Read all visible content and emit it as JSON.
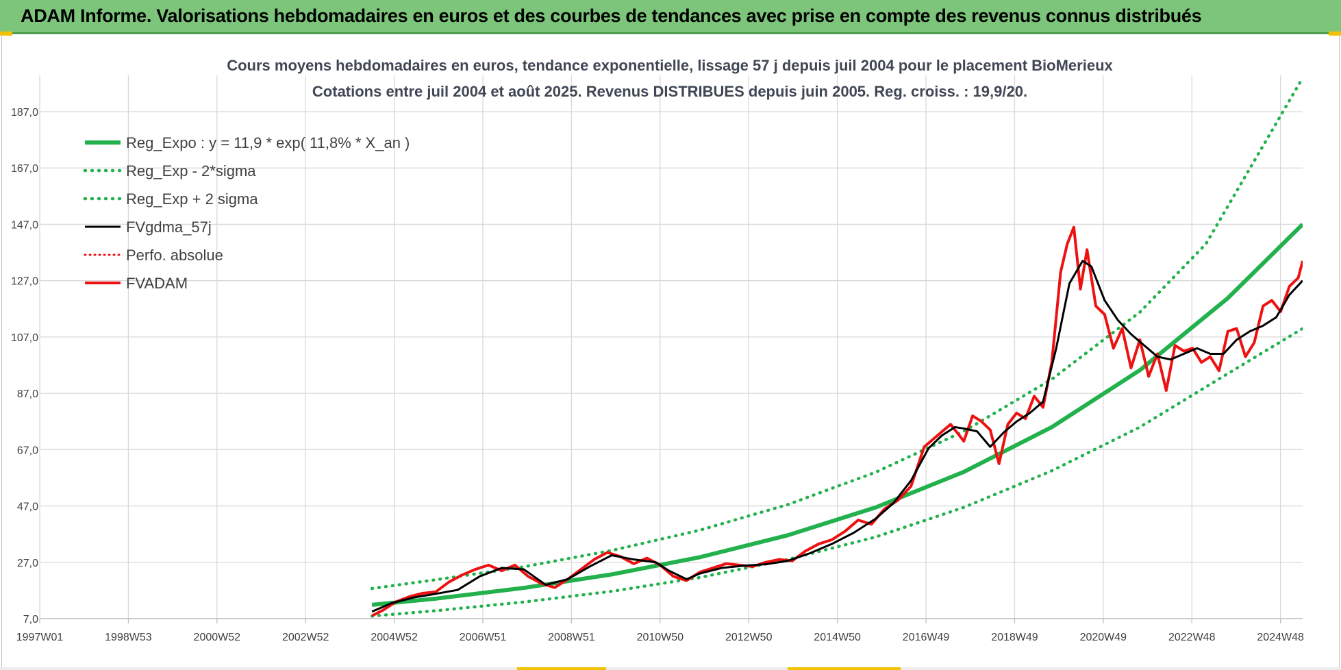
{
  "header": {
    "title": "ADAM Informe. Valorisations hebdomadaires en euros et des courbes de tendances avec prise en compte des revenus connus distribués"
  },
  "chart_data": {
    "type": "line",
    "title": "Cours moyens hebdomadaires en euros, tendance exponentielle, lissage 57 j depuis juil 2004 pour le placement BioMerieux",
    "subtitle": "Cotations entre juil 2004 et août 2025. Revenus DISTRIBUES depuis juin 2005. Reg. croiss. : 19,9/20.",
    "xlabel": "",
    "ylabel": "",
    "x_ticks": [
      "1997W01",
      "1998W53",
      "2000W52",
      "2002W52",
      "2004W52",
      "2006W51",
      "2008W51",
      "2010W50",
      "2012W50",
      "2014W50",
      "2016W49",
      "2018W49",
      "2020W49",
      "2022W48",
      "2024W48"
    ],
    "y_ticks": [
      "7,0",
      "27,0",
      "47,0",
      "67,0",
      "87,0",
      "107,0",
      "127,0",
      "147,0",
      "167,0",
      "187,0"
    ],
    "xlim": [
      1997.0,
      2025.7
    ],
    "ylim": [
      7,
      187
    ],
    "grid": true,
    "legend_position": "top-left",
    "colors": {
      "green": "#22b14c",
      "black": "#000000",
      "red": "#ee1111"
    },
    "series": [
      {
        "name": "Reg_Expo : y = 11,9 * exp( 11,8% *  X_an )",
        "style": "solid",
        "color": "#22b14c",
        "x": [
          2004.55,
          2006,
          2008,
          2010,
          2012,
          2014,
          2016,
          2018,
          2020,
          2022,
          2024,
          2025.7
        ],
        "y": [
          11.9,
          14.1,
          17.9,
          22.7,
          28.8,
          36.6,
          46.5,
          59.1,
          75.0,
          95.2,
          120.8,
          147.0
        ]
      },
      {
        "name": "Reg_Exp - 2*sigma",
        "style": "dotted",
        "color": "#22b14c",
        "x": [
          2004.55,
          2006,
          2008,
          2010,
          2012,
          2014,
          2016,
          2018,
          2020,
          2022,
          2024,
          2025.7
        ],
        "y": [
          7.9,
          9.8,
          12.9,
          16.7,
          21.6,
          28.0,
          36.0,
          46.5,
          59.5,
          75.0,
          94.0,
          110.0
        ]
      },
      {
        "name": "Reg_Exp + 2 sigma",
        "style": "dotted",
        "color": "#22b14c",
        "x": [
          2004.55,
          2006,
          2008,
          2010,
          2012,
          2014,
          2016,
          2018,
          2020,
          2022,
          2023.5,
          2025.7
        ],
        "y": [
          17.7,
          20.8,
          25.4,
          31.2,
          38.4,
          47.5,
          59.0,
          73.5,
          92.0,
          115.8,
          140.0,
          199.0
        ]
      },
      {
        "name": "FVgdma_57j",
        "style": "solid",
        "color": "#000000",
        "x": [
          2004.55,
          2005,
          2005.5,
          2006,
          2006.5,
          2007,
          2007.5,
          2008,
          2008.5,
          2009,
          2009.5,
          2010,
          2010.5,
          2011,
          2011.3,
          2011.7,
          2012,
          2012.5,
          2013,
          2013.5,
          2014,
          2014.5,
          2015,
          2015.5,
          2016,
          2016.4,
          2016.8,
          2017.2,
          2017.5,
          2017.8,
          2018,
          2018.3,
          2018.6,
          2018.9,
          2019.2,
          2019.5,
          2019.8,
          2020.1,
          2020.4,
          2020.7,
          2020.9,
          2021.2,
          2021.5,
          2021.8,
          2022.1,
          2022.4,
          2022.7,
          2023.0,
          2023.3,
          2023.6,
          2023.9,
          2024.2,
          2024.5,
          2024.8,
          2025.1,
          2025.4,
          2025.7
        ],
        "y": [
          9.5,
          12.5,
          14.5,
          15.8,
          17.2,
          22.0,
          25.0,
          24.5,
          19.0,
          21.0,
          25.5,
          29.5,
          28.0,
          27.0,
          24.0,
          21.0,
          23.0,
          25.0,
          25.8,
          26.3,
          27.5,
          30.2,
          33.5,
          37.5,
          42.5,
          48.0,
          56.0,
          67.5,
          72.0,
          75.0,
          74.5,
          73.5,
          68.0,
          73.0,
          77.0,
          80.0,
          84.0,
          103.0,
          126.0,
          134.0,
          132.0,
          120.0,
          113.0,
          108.0,
          104.0,
          100.0,
          99.0,
          101.0,
          103.0,
          101.0,
          101.0,
          106.0,
          109.0,
          111.0,
          114.0,
          122.0,
          127.0
        ]
      },
      {
        "name": "Perfo. absolue",
        "style": "dotted",
        "color": "#ee1111",
        "x": [],
        "y": []
      },
      {
        "name": "FVADAM",
        "style": "solid",
        "color": "#ee1111",
        "x": [
          2004.55,
          2004.8,
          2005.1,
          2005.4,
          2005.7,
          2006.0,
          2006.3,
          2006.6,
          2006.9,
          2007.2,
          2007.5,
          2007.8,
          2008.1,
          2008.4,
          2008.7,
          2009.0,
          2009.3,
          2009.6,
          2009.9,
          2010.2,
          2010.5,
          2010.8,
          2011.1,
          2011.4,
          2011.7,
          2012.0,
          2012.3,
          2012.6,
          2012.9,
          2013.2,
          2013.5,
          2013.8,
          2014.1,
          2014.4,
          2014.7,
          2015.0,
          2015.3,
          2015.6,
          2015.9,
          2016.2,
          2016.5,
          2016.8,
          2017.1,
          2017.4,
          2017.7,
          2018.0,
          2018.2,
          2018.4,
          2018.6,
          2018.8,
          2019.0,
          2019.2,
          2019.4,
          2019.6,
          2019.8,
          2020.0,
          2020.2,
          2020.35,
          2020.5,
          2020.65,
          2020.8,
          2021.0,
          2021.2,
          2021.4,
          2021.6,
          2021.8,
          2022.0,
          2022.2,
          2022.4,
          2022.6,
          2022.8,
          2023.0,
          2023.2,
          2023.4,
          2023.6,
          2023.8,
          2024.0,
          2024.2,
          2024.4,
          2024.6,
          2024.8,
          2025.0,
          2025.2,
          2025.4,
          2025.6,
          2025.7
        ],
        "y": [
          8.0,
          10.0,
          13.0,
          14.8,
          16.0,
          16.5,
          20.0,
          22.5,
          24.5,
          26.0,
          24.0,
          26.0,
          22.0,
          19.5,
          18.0,
          21.0,
          24.5,
          28.0,
          30.5,
          29.0,
          26.5,
          28.5,
          26.0,
          22.0,
          20.5,
          23.5,
          25.0,
          26.5,
          26.0,
          25.5,
          27.0,
          28.0,
          27.5,
          31.0,
          33.5,
          35.0,
          38.0,
          42.0,
          40.5,
          46.0,
          49.0,
          54.0,
          68.0,
          72.0,
          76.0,
          70.0,
          79.0,
          77.0,
          74.0,
          62.0,
          76.0,
          80.0,
          78.0,
          86.0,
          82.0,
          98.0,
          130.0,
          140.0,
          146.0,
          124.0,
          138.0,
          118.0,
          115.0,
          103.0,
          110.0,
          96.0,
          106.0,
          93.0,
          101.0,
          88.0,
          104.0,
          102.0,
          103.0,
          98.0,
          100.0,
          95.0,
          109.0,
          110.0,
          100.0,
          105.0,
          118.0,
          120.0,
          116.0,
          125.0,
          128.0,
          134.0
        ]
      }
    ]
  }
}
